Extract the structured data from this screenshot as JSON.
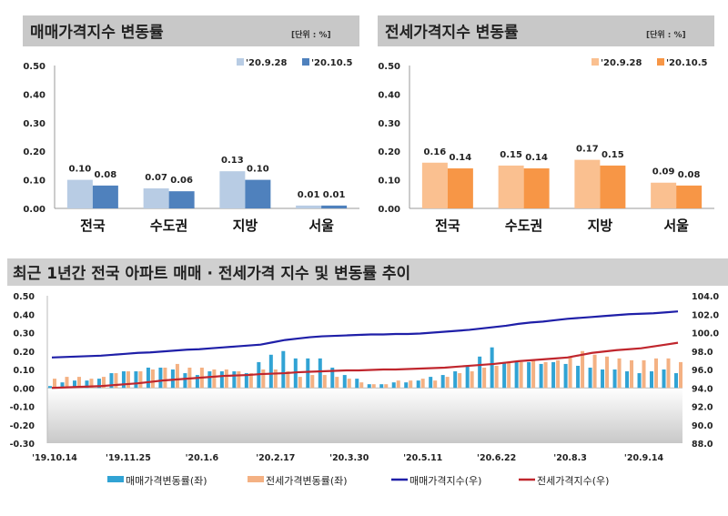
{
  "charts": [
    {
      "type": "bar",
      "title": "매매가격지수 변동률",
      "unit": "[단위 : %]",
      "categories": [
        "전국",
        "수도권",
        "지방",
        "서울"
      ],
      "series": [
        {
          "name": "'20.9.28",
          "values": [
            0.1,
            0.07,
            0.13,
            0.01
          ],
          "color": "#b8cce4"
        },
        {
          "name": "'20.10.5",
          "values": [
            0.08,
            0.06,
            0.1,
            0.01
          ],
          "color": "#4f81bd"
        }
      ],
      "yticks": [
        "0.50",
        "0.40",
        "0.30",
        "0.20",
        "0.10",
        "0.00"
      ],
      "ylim": [
        0,
        0.5
      ]
    },
    {
      "type": "bar",
      "title": "전세가격지수 변동률",
      "unit": "[단위 : %]",
      "categories": [
        "전국",
        "수도권",
        "지방",
        "서울"
      ],
      "series": [
        {
          "name": "'20.9.28",
          "values": [
            0.16,
            0.15,
            0.17,
            0.09
          ],
          "color": "#fac090"
        },
        {
          "name": "'20.10.5",
          "values": [
            0.14,
            0.14,
            0.15,
            0.08
          ],
          "color": "#f79646"
        }
      ],
      "yticks": [
        "0.50",
        "0.40",
        "0.30",
        "0.20",
        "0.10",
        "0.00"
      ],
      "ylim": [
        0,
        0.5
      ]
    }
  ],
  "chart_data": {
    "type": "bar+line",
    "title": "최근 1년간 전국 아파트 매매 · 전세가격 지수 및 변동률 추이",
    "xticks": [
      "'19.10.14",
      "'19.11.25",
      "'20.1.6",
      "'20.2.17",
      "'20.3.30",
      "'20.5.11",
      "'20.6.22",
      "'20.8.3",
      "'20.9.14"
    ],
    "yleft": {
      "ticks": [
        "0.50",
        "0.40",
        "0.30",
        "0.20",
        "0.10",
        "0.00",
        "-0.10",
        "-0.20",
        "-0.30"
      ],
      "lim": [
        -0.3,
        0.5
      ]
    },
    "yright": {
      "ticks": [
        "104.0",
        "102.0",
        "100.0",
        "98.0",
        "96.0",
        "94.0",
        "92.0",
        "90.0",
        "88.0"
      ],
      "lim": [
        88,
        104
      ]
    },
    "series": [
      {
        "name": "매매가격변동률(좌)",
        "type": "bar",
        "axis": "left",
        "color": "#31a3d4",
        "values": [
          0.01,
          0.03,
          0.04,
          0.04,
          0.05,
          0.08,
          0.09,
          0.09,
          0.11,
          0.11,
          0.1,
          0.08,
          0.07,
          0.09,
          0.09,
          0.09,
          0.08,
          0.14,
          0.18,
          0.2,
          0.16,
          0.16,
          0.16,
          0.11,
          0.07,
          0.05,
          0.02,
          0.02,
          0.03,
          0.03,
          0.04,
          0.06,
          0.07,
          0.09,
          0.12,
          0.17,
          0.22,
          0.14,
          0.14,
          0.14,
          0.13,
          0.14,
          0.13,
          0.12,
          0.11,
          0.1,
          0.1,
          0.09,
          0.08,
          0.09,
          0.1,
          0.08
        ]
      },
      {
        "name": "전세가격변동률(좌)",
        "type": "bar",
        "axis": "left",
        "color": "#f4b183",
        "values": [
          0.05,
          0.06,
          0.06,
          0.05,
          0.06,
          0.08,
          0.09,
          0.09,
          0.1,
          0.11,
          0.13,
          0.11,
          0.11,
          0.1,
          0.1,
          0.09,
          0.08,
          0.1,
          0.1,
          0.09,
          0.06,
          0.07,
          0.07,
          0.06,
          0.05,
          0.03,
          0.02,
          0.02,
          0.04,
          0.04,
          0.05,
          0.04,
          0.06,
          0.08,
          0.09,
          0.11,
          0.12,
          0.14,
          0.14,
          0.15,
          0.14,
          0.15,
          0.17,
          0.2,
          0.18,
          0.17,
          0.16,
          0.15,
          0.15,
          0.16,
          0.16,
          0.14
        ]
      },
      {
        "name": "매매가격지수(우)",
        "type": "line",
        "axis": "right",
        "color": "#1f1fa8",
        "values": [
          97.3,
          97.35,
          97.4,
          97.45,
          97.5,
          97.6,
          97.7,
          97.8,
          97.85,
          97.95,
          98.05,
          98.15,
          98.2,
          98.3,
          98.4,
          98.5,
          98.6,
          98.7,
          98.95,
          99.2,
          99.35,
          99.5,
          99.6,
          99.65,
          99.7,
          99.75,
          99.8,
          99.8,
          99.85,
          99.85,
          99.9,
          100.0,
          100.1,
          100.2,
          100.3,
          100.45,
          100.6,
          100.75,
          100.95,
          101.1,
          101.2,
          101.35,
          101.5,
          101.6,
          101.7,
          101.8,
          101.9,
          102.0,
          102.05,
          102.1,
          102.2,
          102.3
        ]
      },
      {
        "name": "전세가격지수(우)",
        "type": "line",
        "axis": "right",
        "color": "#c0262d",
        "values": [
          94.0,
          94.05,
          94.1,
          94.15,
          94.2,
          94.3,
          94.4,
          94.5,
          94.65,
          94.8,
          94.9,
          95.0,
          95.1,
          95.2,
          95.3,
          95.35,
          95.4,
          95.5,
          95.55,
          95.6,
          95.7,
          95.75,
          95.8,
          95.85,
          95.9,
          95.9,
          95.95,
          96.0,
          96.0,
          96.05,
          96.1,
          96.15,
          96.2,
          96.3,
          96.4,
          96.5,
          96.6,
          96.75,
          96.9,
          97.0,
          97.1,
          97.2,
          97.3,
          97.55,
          97.8,
          97.95,
          98.1,
          98.2,
          98.3,
          98.5,
          98.7,
          98.9
        ]
      }
    ]
  }
}
